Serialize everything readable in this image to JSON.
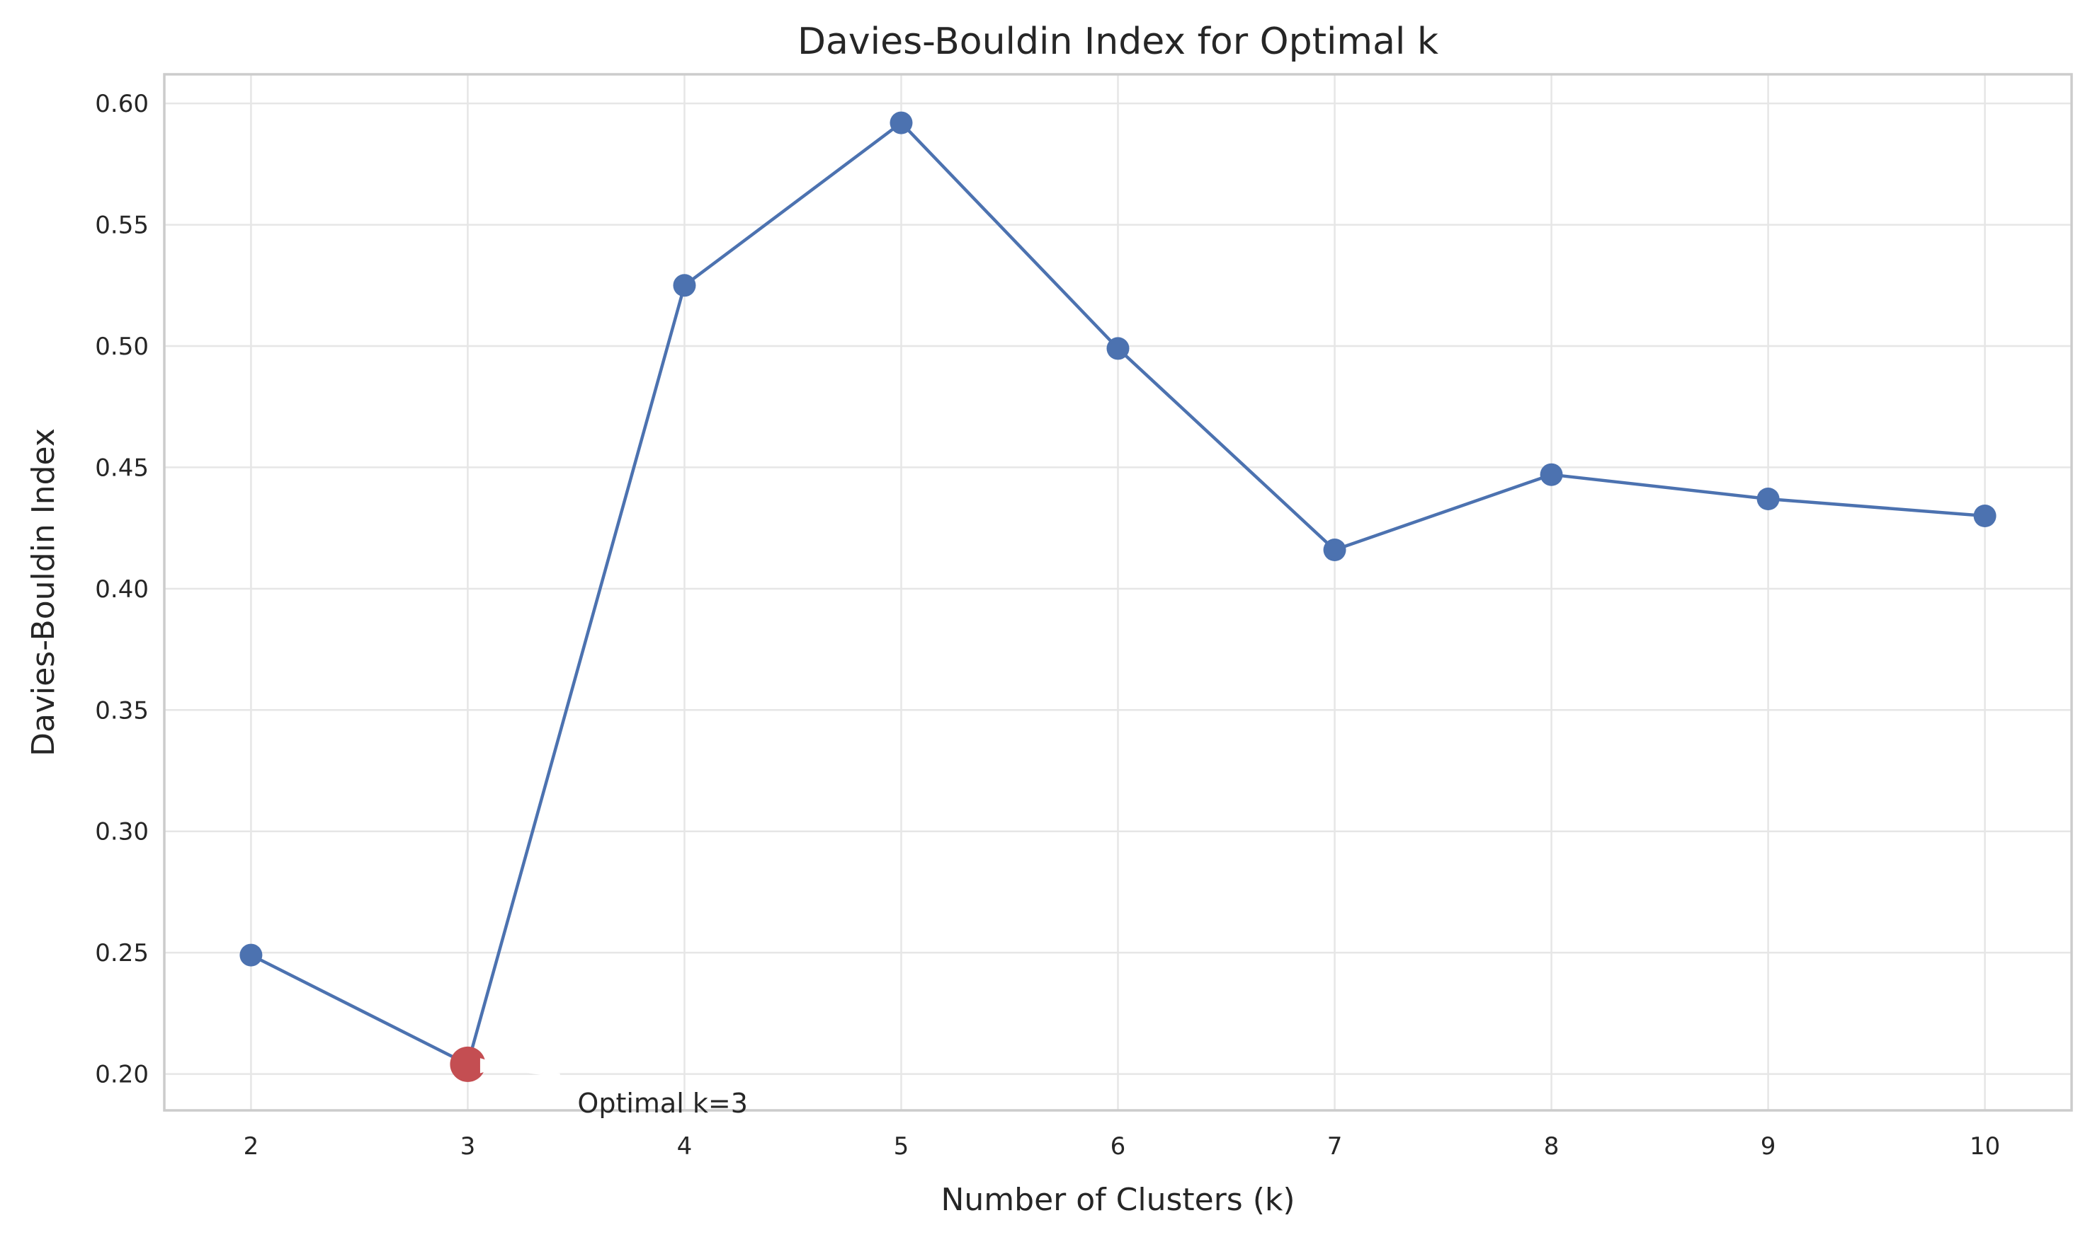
{
  "chart_data": {
    "type": "line",
    "title": "Davies-Bouldin Index for Optimal k",
    "xlabel": "Number of Clusters (k)",
    "ylabel": "Davies-Bouldin Index",
    "x": [
      2,
      3,
      4,
      5,
      6,
      7,
      8,
      9,
      10
    ],
    "series": [
      {
        "values": [
          0.249,
          0.204,
          0.525,
          0.592,
          0.499,
          0.416,
          0.447,
          0.437,
          0.43
        ]
      }
    ],
    "xlim": [
      1.6,
      10.4
    ],
    "ylim": [
      0.185,
      0.612
    ],
    "xticks": [
      "2",
      "3",
      "4",
      "5",
      "6",
      "7",
      "8",
      "9",
      "10"
    ],
    "yticks": [
      "0.20",
      "0.25",
      "0.30",
      "0.35",
      "0.40",
      "0.45",
      "0.50",
      "0.55",
      "0.60"
    ],
    "grid": true,
    "colors": {
      "line": "#4c72b0",
      "highlight": "#c44e52"
    },
    "annotation": {
      "text": "Optimal k=3",
      "x": 3,
      "y": 0.204
    }
  }
}
